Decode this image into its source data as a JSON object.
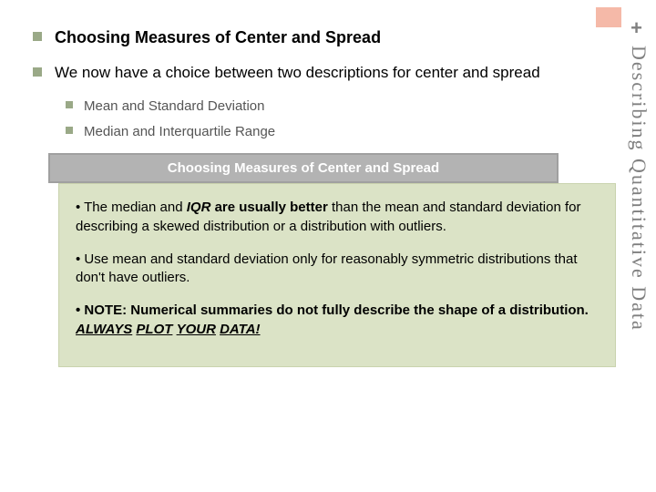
{
  "decoration": {
    "box_color": "#f5b9a8",
    "plus": "+"
  },
  "vertical_label": "Describing Quantitative Data",
  "bullets": {
    "b1": "Choosing Measures of Center and Spread",
    "b2": "We now have a choice between two descriptions for center and spread",
    "s1": "Mean and Standard Deviation",
    "s2": "Median and Interquartile Range"
  },
  "banner": "Choosing Measures of Center and Spread",
  "box": {
    "p1_prefix": "• The median and ",
    "p1_iqr": "IQR",
    "p1_mid": " are usually better",
    "p1_rest": " than the mean and standard deviation for describing a skewed distribution or a distribution with outliers.",
    "p2": "• Use mean and standard deviation only for reasonably symmetric distributions that don't have outliers.",
    "p3_prefix": "• NOTE: Numerical summaries do not fully describe the shape of a distribution.  ",
    "p3_em1": "ALWAYS",
    "p3_sp1": "  ",
    "p3_em2": "PLOT",
    "p3_sp2": "  ",
    "p3_em3": "YOUR",
    "p3_sp3": "  ",
    "p3_em4": "DATA!"
  }
}
